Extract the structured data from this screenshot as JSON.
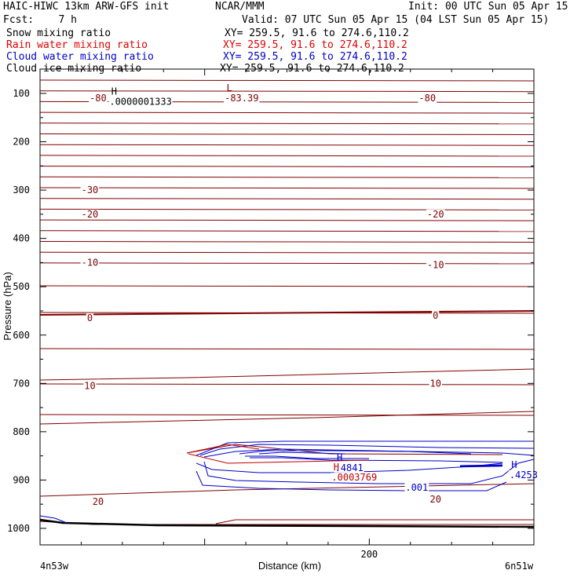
{
  "header": {
    "title_left": "HAIC-HIWC 13km ARW-GFS init",
    "title_center": "NCAR/MMM",
    "init": "Init: 00 UTC Sun 05 Apr 15",
    "fcst": "Fcst:    7 h",
    "valid": "Valid: 07 UTC Sun 05 Apr 15 (04 LST Sun 05 Apr 15)",
    "fields": [
      {
        "name": "Snow mixing ratio",
        "xy": "XY= 259.5, 91.6 to 274.6,110.2",
        "color": "#000000"
      },
      {
        "name": "Rain water mixing ratio",
        "xy": "XY= 259.5, 91.6 to 274.6,110.2",
        "color": "#e00000"
      },
      {
        "name": "Cloud water mixing ratio",
        "xy": "XY= 259.5, 91.6 to 274.6,110.2",
        "color": "#0000c8"
      },
      {
        "name": "Cloud ice mixing ratio",
        "xy": "XY= 259.5, 91.6 to 274.6,110.2",
        "color": "#000000"
      }
    ]
  },
  "chart_data": {
    "type": "line",
    "xlabel": "Distance (km)",
    "ylabel": "Pressure (hPa)",
    "x_ticks": [
      200
    ],
    "y_ticks": [
      100,
      200,
      300,
      400,
      500,
      600,
      700,
      800,
      900,
      1000
    ],
    "xlim": [
      0,
      300
    ],
    "ylim": [
      1050,
      55
    ],
    "x_end_labels": {
      "left": "4n53w",
      "right": "6n51w"
    },
    "colors": {
      "temperature": "#800000",
      "cloud_water": "#0000c8",
      "rain": "#c00000",
      "snow": "#000000"
    },
    "temperature_labels": [
      {
        "text": "-80",
        "x": 20,
        "p": 110
      },
      {
        "text": "-80",
        "x": 220,
        "p": 110
      },
      {
        "text": "-30",
        "x": 15,
        "p": 300
      },
      {
        "text": "-20",
        "x": 15,
        "p": 350
      },
      {
        "text": "-20",
        "x": 225,
        "p": 350
      },
      {
        "text": "-10",
        "x": 15,
        "p": 450
      },
      {
        "text": "-10",
        "x": 225,
        "p": 455
      },
      {
        "text": "0",
        "x": 15,
        "p": 565
      },
      {
        "text": "0",
        "x": 225,
        "p": 560
      },
      {
        "text": "10",
        "x": 15,
        "p": 705
      },
      {
        "text": "10",
        "x": 225,
        "p": 700
      },
      {
        "text": "20",
        "x": 20,
        "p": 945
      },
      {
        "text": "20",
        "x": 225,
        "p": 940
      }
    ],
    "extrema": [
      {
        "letter": "L",
        "value": "-83.39",
        "x": 115,
        "p": 100,
        "color": "#800000"
      },
      {
        "letter": "H",
        "value": ".0000001333",
        "x": 45,
        "p": 107,
        "color": "#000000"
      },
      {
        "letter": "H",
        "value": ".4841",
        "x": 182,
        "p": 865,
        "color": "#0000c8"
      },
      {
        "letter": "H",
        "value": ".0003769",
        "x": 180,
        "p": 885,
        "color": "#c00000"
      },
      {
        "letter": "H",
        "value": ".4253",
        "x": 288,
        "p": 880,
        "color": "#0000c8"
      }
    ],
    "cloud_label": {
      "text": ".001",
      "x": 205,
      "p": 922
    }
  }
}
